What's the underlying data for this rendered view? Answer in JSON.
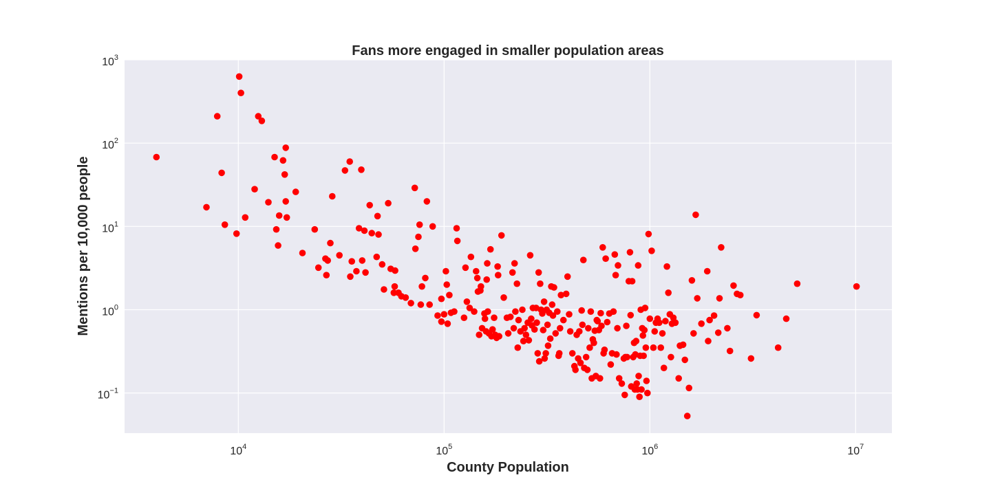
{
  "chart_data": {
    "type": "scatter",
    "title": "Fans more engaged in smaller population areas",
    "xlabel": "County Population",
    "ylabel": "Mentions per 10,000 people",
    "xscale": "log",
    "yscale": "log",
    "xlim": [
      2800,
      15000000
    ],
    "ylim": [
      0.033,
      1000
    ],
    "xticks": [
      {
        "base": "10",
        "exp": "4",
        "value": 10000
      },
      {
        "base": "10",
        "exp": "5",
        "value": 100000
      },
      {
        "base": "10",
        "exp": "6",
        "value": 1000000
      },
      {
        "base": "10",
        "exp": "7",
        "value": 10000000
      }
    ],
    "yticks": [
      {
        "base": "10",
        "exp": "3",
        "value": 1000
      },
      {
        "base": "10",
        "exp": "2",
        "value": 100
      },
      {
        "base": "10",
        "exp": "1",
        "value": 10
      },
      {
        "base": "10",
        "exp": "0",
        "value": 1
      },
      {
        "base": "10",
        "exp": "−1",
        "value": 0.1
      }
    ],
    "grid": true,
    "marker_color": "#ff0000",
    "background_color": "#eaeaf2",
    "points": [
      [
        4000,
        68
      ],
      [
        7000,
        17
      ],
      [
        7900,
        210
      ],
      [
        8300,
        44
      ],
      [
        8600,
        10.5
      ],
      [
        9800,
        8.2
      ],
      [
        10100,
        630
      ],
      [
        10300,
        400
      ],
      [
        10800,
        12.8
      ],
      [
        12000,
        28
      ],
      [
        12500,
        210
      ],
      [
        13000,
        185
      ],
      [
        14000,
        19.5
      ],
      [
        15000,
        68
      ],
      [
        15300,
        9.2
      ],
      [
        15600,
        5.9
      ],
      [
        15800,
        13.5
      ],
      [
        16500,
        62
      ],
      [
        16800,
        42
      ],
      [
        17000,
        88
      ],
      [
        17000,
        20
      ],
      [
        17200,
        12.8
      ],
      [
        19000,
        26
      ],
      [
        20500,
        4.8
      ],
      [
        23500,
        9.2
      ],
      [
        24500,
        3.2
      ],
      [
        26500,
        4.1
      ],
      [
        26800,
        2.6
      ],
      [
        27200,
        3.9
      ],
      [
        28000,
        6.3
      ],
      [
        28600,
        23
      ],
      [
        31000,
        4.5
      ],
      [
        33000,
        47
      ],
      [
        34800,
        60
      ],
      [
        35000,
        2.5
      ],
      [
        35600,
        3.8
      ],
      [
        37500,
        2.9
      ],
      [
        38600,
        9.5
      ],
      [
        39600,
        48
      ],
      [
        40000,
        3.9
      ],
      [
        41000,
        8.9
      ],
      [
        41500,
        2.8
      ],
      [
        43500,
        18
      ],
      [
        44500,
        8.3
      ],
      [
        47000,
        4.3
      ],
      [
        47500,
        13.3
      ],
      [
        48000,
        8
      ],
      [
        50000,
        3.5
      ],
      [
        51000,
        1.75
      ],
      [
        53500,
        19
      ],
      [
        55000,
        3.1
      ],
      [
        57000,
        1.6
      ],
      [
        57500,
        1.9
      ],
      [
        57800,
        2.95
      ],
      [
        60000,
        1.6
      ],
      [
        62000,
        1.45
      ],
      [
        65000,
        1.4
      ],
      [
        69000,
        1.2
      ],
      [
        72000,
        29
      ],
      [
        72500,
        5.4
      ],
      [
        75000,
        7.5
      ],
      [
        76000,
        10.5
      ],
      [
        77000,
        1.15
      ],
      [
        78000,
        1.9
      ],
      [
        81000,
        2.4
      ],
      [
        82500,
        20
      ],
      [
        85000,
        1.15
      ],
      [
        88000,
        10
      ],
      [
        93000,
        0.85
      ],
      [
        97000,
        1.35
      ],
      [
        97000,
        0.72
      ],
      [
        100000,
        0.88
      ],
      [
        102000,
        2.9
      ],
      [
        103000,
        2
      ],
      [
        104000,
        0.68
      ],
      [
        106000,
        1.5
      ],
      [
        108000,
        0.92
      ],
      [
        112000,
        0.95
      ],
      [
        115000,
        9.5
      ],
      [
        116000,
        6.7
      ],
      [
        125000,
        0.8
      ],
      [
        127000,
        3.2
      ],
      [
        129000,
        1.25
      ],
      [
        133000,
        1.05
      ],
      [
        135000,
        4.3
      ],
      [
        140000,
        0.95
      ],
      [
        143000,
        2.9
      ],
      [
        145000,
        2.4
      ],
      [
        146000,
        1.65
      ],
      [
        148000,
        0.5
      ],
      [
        150000,
        1.7
      ],
      [
        151000,
        1.9
      ],
      [
        153000,
        0.6
      ],
      [
        157000,
        0.9
      ],
      [
        158000,
        0.78
      ],
      [
        160000,
        0.55
      ],
      [
        161000,
        2.3
      ],
      [
        162000,
        3.6
      ],
      [
        163000,
        0.95
      ],
      [
        165000,
        0.52
      ],
      [
        168000,
        5.3
      ],
      [
        170000,
        0.48
      ],
      [
        172000,
        0.58
      ],
      [
        175000,
        0.8
      ],
      [
        177000,
        0.5
      ],
      [
        180000,
        0.46
      ],
      [
        182000,
        3.3
      ],
      [
        183000,
        2.6
      ],
      [
        185000,
        0.48
      ],
      [
        190000,
        7.8
      ],
      [
        195000,
        1.4
      ],
      [
        202000,
        0.8
      ],
      [
        205000,
        0.52
      ],
      [
        210000,
        0.82
      ],
      [
        215000,
        2.8
      ],
      [
        218000,
        0.6
      ],
      [
        220000,
        3.6
      ],
      [
        222000,
        0.95
      ],
      [
        226000,
        2.05
      ],
      [
        228000,
        0.35
      ],
      [
        230000,
        0.75
      ],
      [
        235000,
        0.55
      ],
      [
        240000,
        1
      ],
      [
        243000,
        0.42
      ],
      [
        246000,
        0.6
      ],
      [
        250000,
        0.5
      ],
      [
        255000,
        0.7
      ],
      [
        258000,
        0.43
      ],
      [
        262000,
        4.5
      ],
      [
        265000,
        0.78
      ],
      [
        267000,
        0.65
      ],
      [
        270000,
        1.05
      ],
      [
        275000,
        0.58
      ],
      [
        280000,
        1.05
      ],
      [
        282000,
        0.7
      ],
      [
        285000,
        0.3
      ],
      [
        288000,
        2.8
      ],
      [
        290000,
        0.24
      ],
      [
        293000,
        2.05
      ],
      [
        296000,
        1
      ],
      [
        300000,
        0.9
      ],
      [
        303000,
        0.57
      ],
      [
        306000,
        1.25
      ],
      [
        308000,
        0.26
      ],
      [
        312000,
        0.3
      ],
      [
        315000,
        1
      ],
      [
        318000,
        0.66
      ],
      [
        320000,
        0.37
      ],
      [
        324000,
        0.92
      ],
      [
        328000,
        0.45
      ],
      [
        332000,
        1.9
      ],
      [
        335000,
        1.15
      ],
      [
        338000,
        0.85
      ],
      [
        342000,
        1.85
      ],
      [
        348000,
        0.52
      ],
      [
        355000,
        0.95
      ],
      [
        360000,
        0.28
      ],
      [
        363000,
        0.3
      ],
      [
        366000,
        0.6
      ],
      [
        370000,
        1.5
      ],
      [
        380000,
        0.75
      ],
      [
        392000,
        1.55
      ],
      [
        398000,
        2.5
      ],
      [
        405000,
        0.88
      ],
      [
        410000,
        0.55
      ],
      [
        420000,
        0.3
      ],
      [
        430000,
        0.21
      ],
      [
        435000,
        0.19
      ],
      [
        441000,
        0.5
      ],
      [
        448000,
        0.26
      ],
      [
        454000,
        0.55
      ],
      [
        460000,
        0.23
      ],
      [
        466000,
        0.98
      ],
      [
        470000,
        0.66
      ],
      [
        475000,
        3.95
      ],
      [
        480000,
        0.2
      ],
      [
        490000,
        0.27
      ],
      [
        497000,
        0.19
      ],
      [
        502000,
        0.6
      ],
      [
        510000,
        0.35
      ],
      [
        516000,
        0.95
      ],
      [
        522000,
        0.15
      ],
      [
        528000,
        0.44
      ],
      [
        534000,
        0.4
      ],
      [
        540000,
        0.56
      ],
      [
        546000,
        0.16
      ],
      [
        552000,
        0.75
      ],
      [
        557000,
        0.73
      ],
      [
        565000,
        0.57
      ],
      [
        572000,
        0.15
      ],
      [
        577000,
        0.91
      ],
      [
        582000,
        0.64
      ],
      [
        590000,
        5.6
      ],
      [
        596000,
        0.3
      ],
      [
        602000,
        0.33
      ],
      [
        610000,
        4.1
      ],
      [
        620000,
        0.71
      ],
      [
        635000,
        0.9
      ],
      [
        645000,
        0.22
      ],
      [
        655000,
        0.3
      ],
      [
        665000,
        0.95
      ],
      [
        675000,
        4.6
      ],
      [
        682000,
        2.6
      ],
      [
        688000,
        0.29
      ],
      [
        695000,
        0.6
      ],
      [
        700000,
        3.4
      ],
      [
        709000,
        0.15
      ],
      [
        730000,
        0.13
      ],
      [
        747000,
        0.26
      ],
      [
        755000,
        0.095
      ],
      [
        760000,
        0.27
      ],
      [
        768000,
        0.64
      ],
      [
        775000,
        0.27
      ],
      [
        790000,
        2.2
      ],
      [
        800000,
        4.9
      ],
      [
        806000,
        0.86
      ],
      [
        812000,
        0.12
      ],
      [
        820000,
        2.2
      ],
      [
        830000,
        0.27
      ],
      [
        838000,
        0.4
      ],
      [
        845000,
        0.11
      ],
      [
        850000,
        0.29
      ],
      [
        857000,
        0.42
      ],
      [
        863000,
        0.13
      ],
      [
        870000,
        0.11
      ],
      [
        877000,
        3.4
      ],
      [
        882000,
        0.16
      ],
      [
        890000,
        0.09
      ],
      [
        897000,
        0.28
      ],
      [
        903000,
        1
      ],
      [
        910000,
        0.11
      ],
      [
        918000,
        0.6
      ],
      [
        925000,
        0.49
      ],
      [
        932000,
        0.28
      ],
      [
        940000,
        0.57
      ],
      [
        948000,
        1.05
      ],
      [
        955000,
        0.35
      ],
      [
        963000,
        0.14
      ],
      [
        973000,
        0.1
      ],
      [
        985000,
        8.1
      ],
      [
        1000000,
        0.78
      ],
      [
        1020000,
        5.1
      ],
      [
        1040000,
        0.35
      ],
      [
        1055000,
        0.55
      ],
      [
        1070000,
        0.7
      ],
      [
        1090000,
        0.78
      ],
      [
        1110000,
        0.7
      ],
      [
        1130000,
        0.35
      ],
      [
        1150000,
        0.52
      ],
      [
        1170000,
        0.2
      ],
      [
        1190000,
        0.73
      ],
      [
        1210000,
        3.3
      ],
      [
        1230000,
        1.6
      ],
      [
        1250000,
        0.88
      ],
      [
        1265000,
        0.27
      ],
      [
        1280000,
        0.68
      ],
      [
        1300000,
        0.8
      ],
      [
        1330000,
        0.7
      ],
      [
        1380000,
        0.15
      ],
      [
        1400000,
        0.37
      ],
      [
        1450000,
        0.38
      ],
      [
        1480000,
        0.25
      ],
      [
        1520000,
        0.053
      ],
      [
        1550000,
        0.115
      ],
      [
        1600000,
        2.25
      ],
      [
        1630000,
        0.52
      ],
      [
        1670000,
        13.8
      ],
      [
        1700000,
        1.37
      ],
      [
        1780000,
        0.68
      ],
      [
        1900000,
        2.9
      ],
      [
        1920000,
        0.42
      ],
      [
        1950000,
        0.75
      ],
      [
        2050000,
        0.85
      ],
      [
        2150000,
        0.53
      ],
      [
        2180000,
        1.37
      ],
      [
        2220000,
        5.6
      ],
      [
        2380000,
        0.6
      ],
      [
        2450000,
        0.32
      ],
      [
        2550000,
        1.95
      ],
      [
        2650000,
        1.55
      ],
      [
        2750000,
        1.5
      ],
      [
        3100000,
        0.26
      ],
      [
        3300000,
        0.86
      ],
      [
        4200000,
        0.35
      ],
      [
        4600000,
        0.78
      ],
      [
        5200000,
        2.05
      ],
      [
        10100000,
        1.9
      ]
    ]
  }
}
